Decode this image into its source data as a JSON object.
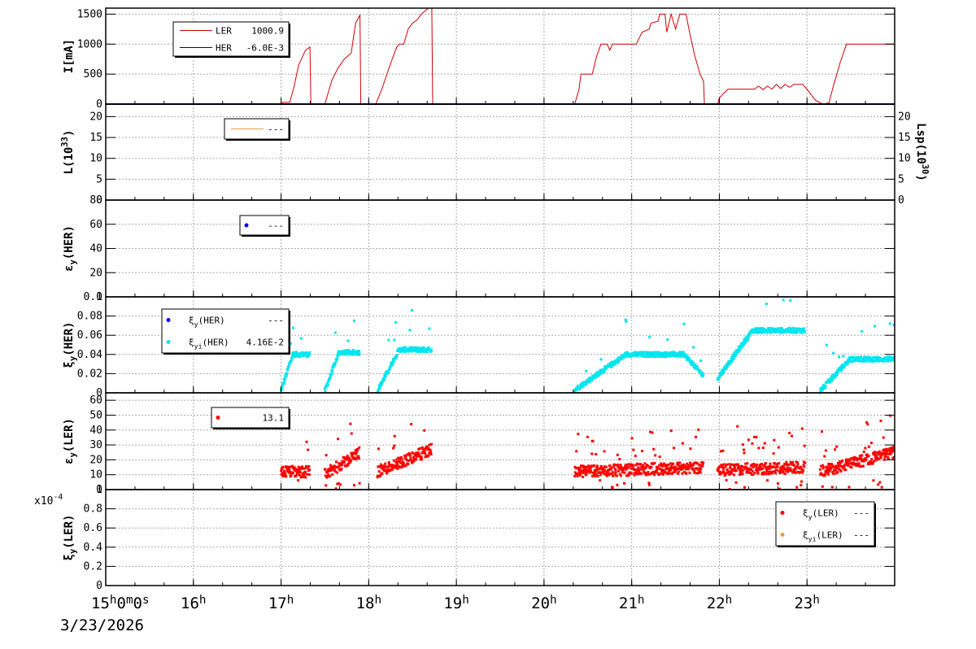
{
  "chart_data": {
    "type": "line",
    "date": "3/23/2026",
    "multiplier": "x10",
    "multiplier_exp": "-4",
    "time_axis": {
      "range": [
        15,
        24
      ],
      "ticks": [
        {
          "hour": 15,
          "label": "15",
          "sup": "h",
          "tail": "0",
          "tail_sup": "m",
          "tail2": "0",
          "tail2_sup": "s"
        },
        {
          "hour": 16,
          "label": "16",
          "sup": "h"
        },
        {
          "hour": 17,
          "label": "17",
          "sup": "h"
        },
        {
          "hour": 18,
          "label": "18",
          "sup": "h"
        },
        {
          "hour": 19,
          "label": "19",
          "sup": "h"
        },
        {
          "hour": 20,
          "label": "20",
          "sup": "h"
        },
        {
          "hour": 21,
          "label": "21",
          "sup": "h"
        },
        {
          "hour": 22,
          "label": "22",
          "sup": "h"
        },
        {
          "hour": 23,
          "label": "23",
          "sup": "h"
        }
      ]
    },
    "panels": [
      {
        "id": "current",
        "ylabel": "I[mA]",
        "ylim": [
          0,
          1600
        ],
        "yticks": [
          0,
          500,
          1000,
          1500
        ],
        "legend": [
          {
            "label": "LER",
            "value": "1000.9",
            "color": "#cc0000",
            "style": "line"
          },
          {
            "label": "HER",
            "value": "-6.0E-3",
            "color": "#000080",
            "style": "line"
          }
        ],
        "series": [
          {
            "name": "LER",
            "color": "#cc0000",
            "points": [
              [
                15.0,
                0
              ],
              [
                17.0,
                0
              ],
              [
                17.02,
                30
              ],
              [
                17.1,
                30
              ],
              [
                17.15,
                300
              ],
              [
                17.2,
                650
              ],
              [
                17.28,
                900
              ],
              [
                17.33,
                950
              ],
              [
                17.34,
                0
              ],
              [
                17.5,
                0
              ],
              [
                17.58,
                400
              ],
              [
                17.65,
                600
              ],
              [
                17.72,
                750
              ],
              [
                17.8,
                850
              ],
              [
                17.85,
                1350
              ],
              [
                17.9,
                1480
              ],
              [
                17.91,
                0
              ],
              [
                18.08,
                0
              ],
              [
                18.15,
                250
              ],
              [
                18.22,
                550
              ],
              [
                18.28,
                800
              ],
              [
                18.32,
                950
              ],
              [
                18.35,
                1000
              ],
              [
                18.4,
                1000
              ],
              [
                18.45,
                1250
              ],
              [
                18.5,
                1350
              ],
              [
                18.55,
                1400
              ],
              [
                18.6,
                1500
              ],
              [
                18.68,
                1600
              ],
              [
                18.72,
                1620
              ],
              [
                18.73,
                0
              ],
              [
                20.35,
                0
              ],
              [
                20.4,
                250
              ],
              [
                20.42,
                500
              ],
              [
                20.55,
                500
              ],
              [
                20.6,
                800
              ],
              [
                20.65,
                1000
              ],
              [
                20.72,
                1000
              ],
              [
                20.75,
                900
              ],
              [
                20.78,
                1000
              ],
              [
                21.05,
                1000
              ],
              [
                21.12,
                1200
              ],
              [
                21.2,
                1250
              ],
              [
                21.22,
                1350
              ],
              [
                21.3,
                1380
              ],
              [
                21.32,
                1500
              ],
              [
                21.38,
                1500
              ],
              [
                21.4,
                1200
              ],
              [
                21.45,
                1500
              ],
              [
                21.5,
                1250
              ],
              [
                21.55,
                1500
              ],
              [
                21.62,
                1500
              ],
              [
                21.66,
                1200
              ],
              [
                21.72,
                800
              ],
              [
                21.78,
                500
              ],
              [
                21.82,
                380
              ],
              [
                21.83,
                0
              ],
              [
                21.98,
                0
              ],
              [
                22.0,
                100
              ],
              [
                22.05,
                180
              ],
              [
                22.1,
                250
              ],
              [
                22.3,
                250
              ],
              [
                22.4,
                250
              ],
              [
                22.45,
                300
              ],
              [
                22.5,
                240
              ],
              [
                22.55,
                300
              ],
              [
                22.6,
                250
              ],
              [
                22.65,
                330
              ],
              [
                22.7,
                260
              ],
              [
                22.75,
                330
              ],
              [
                22.8,
                280
              ],
              [
                22.85,
                330
              ],
              [
                22.95,
                330
              ],
              [
                23.0,
                250
              ],
              [
                23.05,
                150
              ],
              [
                23.1,
                60
              ],
              [
                23.18,
                0
              ],
              [
                23.25,
                20
              ],
              [
                23.3,
                300
              ],
              [
                23.38,
                700
              ],
              [
                23.45,
                1000
              ],
              [
                24.0,
                1000
              ]
            ]
          },
          {
            "name": "HER",
            "color": "#000080",
            "points": [
              [
                15.0,
                0
              ],
              [
                24.0,
                0
              ]
            ]
          }
        ]
      },
      {
        "id": "luminosity",
        "ylabel": "L(10",
        "ylabel_sup": "33",
        "ylabel_tail": ")",
        "ylim": [
          0,
          23
        ],
        "yticks": [
          0,
          5,
          10,
          15,
          20
        ],
        "right_axis": {
          "ylabel": "Lsp(10",
          "ylabel_sup": "30",
          "ylabel_tail": ")",
          "yticks": [
            0,
            5,
            10,
            15,
            20
          ]
        },
        "legend": [
          {
            "label": "",
            "value": "---",
            "color": "#e8a040",
            "style": "line"
          }
        ],
        "series": []
      },
      {
        "id": "eps_her",
        "ylabel": "ε",
        "ylabel_sub": "y",
        "ylabel_tail": "(HER)",
        "ylim": [
          0,
          80
        ],
        "yticks": [
          0,
          20,
          40,
          60,
          80
        ],
        "legend": [
          {
            "label": "",
            "value": "---",
            "color": "#0000ff",
            "style": "dot"
          }
        ],
        "series": []
      },
      {
        "id": "xi_her",
        "ylabel": "ξ",
        "ylabel_sub": "y",
        "ylabel_tail": "(HER)",
        "ylim": [
          0,
          0.1
        ],
        "yticks": [
          0,
          0.02,
          0.04,
          0.06,
          0.08,
          0.1
        ],
        "ytick_labels": [
          "0",
          "0.02",
          "0.04",
          "0.06",
          "0.08",
          "0.1"
        ],
        "legend": [
          {
            "label": "ξ",
            "label_sub": "y",
            "label_tail": "(HER)",
            "value": "---",
            "color": "#0000ff",
            "style": "dot"
          },
          {
            "label": "ξ",
            "label_sub": "yi",
            "label_tail": "(HER)",
            "value": "4.16E-2",
            "color": "#00e5ee",
            "style": "dot"
          }
        ],
        "scatter": {
          "name": "ξyi(HER)",
          "color": "#00e5ee",
          "segments": [
            {
              "x": [
                17.0,
                17.33
              ],
              "y": [
                0.002,
                0.04
              ]
            },
            {
              "x": [
                17.5,
                17.9
              ],
              "y": [
                0.002,
                0.042
              ]
            },
            {
              "x": [
                18.1,
                18.72
              ],
              "y": [
                0.002,
                0.045
              ]
            },
            {
              "x": [
                20.35,
                21.82
              ],
              "y": [
                0.003,
                0.04
              ]
            },
            {
              "x": [
                21.98,
                22.98
              ],
              "y": [
                0.015,
                0.065
              ]
            },
            {
              "x": [
                23.15,
                24.0
              ],
              "y": [
                0.002,
                0.035
              ]
            }
          ]
        }
      },
      {
        "id": "eps_ler",
        "ylabel": "ε",
        "ylabel_sub": "y",
        "ylabel_tail": "(LER)",
        "ylim": [
          0,
          65
        ],
        "yticks": [
          0,
          10,
          20,
          30,
          40,
          50,
          60
        ],
        "legend": [
          {
            "label": "",
            "value": "13.1",
            "color": "#ff0000",
            "style": "dot"
          }
        ],
        "scatter": {
          "name": "εy(LER)",
          "color": "#ff0000",
          "segments": [
            {
              "x": [
                17.0,
                17.33
              ],
              "y": [
                12,
                12
              ]
            },
            {
              "x": [
                17.5,
                17.9
              ],
              "y": [
                10,
                25
              ]
            },
            {
              "x": [
                18.1,
                18.72
              ],
              "y": [
                12,
                27
              ]
            },
            {
              "x": [
                20.35,
                21.82
              ],
              "y": [
                12,
                15
              ]
            },
            {
              "x": [
                21.98,
                22.98
              ],
              "y": [
                13,
                15
              ]
            },
            {
              "x": [
                23.15,
                24.0
              ],
              "y": [
                12,
                25
              ]
            }
          ]
        }
      },
      {
        "id": "xi_ler",
        "ylabel": "ξ",
        "ylabel_sub": "y",
        "ylabel_tail": "(LER)",
        "ylim": [
          0,
          1.0
        ],
        "yticks": [
          0,
          0.2,
          0.4,
          0.6,
          0.8,
          1
        ],
        "ytick_labels": [
          "0",
          "0.2",
          "0.4",
          "0.6",
          "0.8",
          "1"
        ],
        "legend": [
          {
            "label": "ξ",
            "label_sub": "y",
            "label_tail": "(LER)",
            "value": "---",
            "color": "#ff0000",
            "style": "dot"
          },
          {
            "label": "ξ",
            "label_sub": "yi",
            "label_tail": "(LER)",
            "value": "---",
            "color": "#e8a040",
            "style": "dot"
          }
        ],
        "series": []
      }
    ]
  }
}
